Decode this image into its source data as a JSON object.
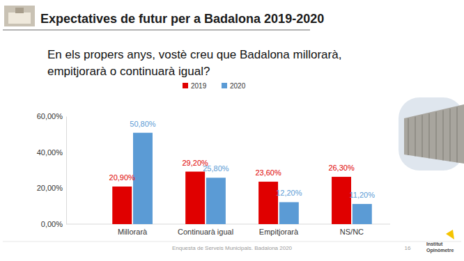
{
  "chart_data": {
    "type": "bar",
    "title": "Expectatives de futur per a Badalona 2019-2020",
    "subtitle": [
      "En els propers anys, vostè creu que Badalona millorarà,",
      "empitjorarà o continuarà igual?"
    ],
    "categories": [
      "Millorarà",
      "Continuarà igual",
      "Empitjorarà",
      "NS/NC"
    ],
    "series": [
      {
        "name": "2019",
        "color": "#e00000",
        "values": [
          20.9,
          29.2,
          23.6,
          26.3
        ],
        "value_labels": [
          "20,90%",
          "29,20%",
          "23,60%",
          "26,30%"
        ]
      },
      {
        "name": "2020",
        "color": "#5b9bd5",
        "values": [
          50.8,
          25.8,
          12.2,
          11.2
        ],
        "value_labels": [
          "50,80%",
          "25,80%",
          "12,20%",
          "11,20%"
        ]
      }
    ],
    "ylim": [
      0,
      60
    ],
    "yticks": [
      {
        "value": 0,
        "label": "0,00%"
      },
      {
        "value": 20,
        "label": "20,00%"
      },
      {
        "value": 40,
        "label": "40,00%"
      },
      {
        "value": 60,
        "label": "60,00%"
      }
    ],
    "grid": false,
    "legend": "top",
    "data_labels": true,
    "annotations": [
      "Enquesta de Serveis Municipals. Badalona 2020",
      "16",
      "Institut",
      "Opinòmetre"
    ]
  }
}
